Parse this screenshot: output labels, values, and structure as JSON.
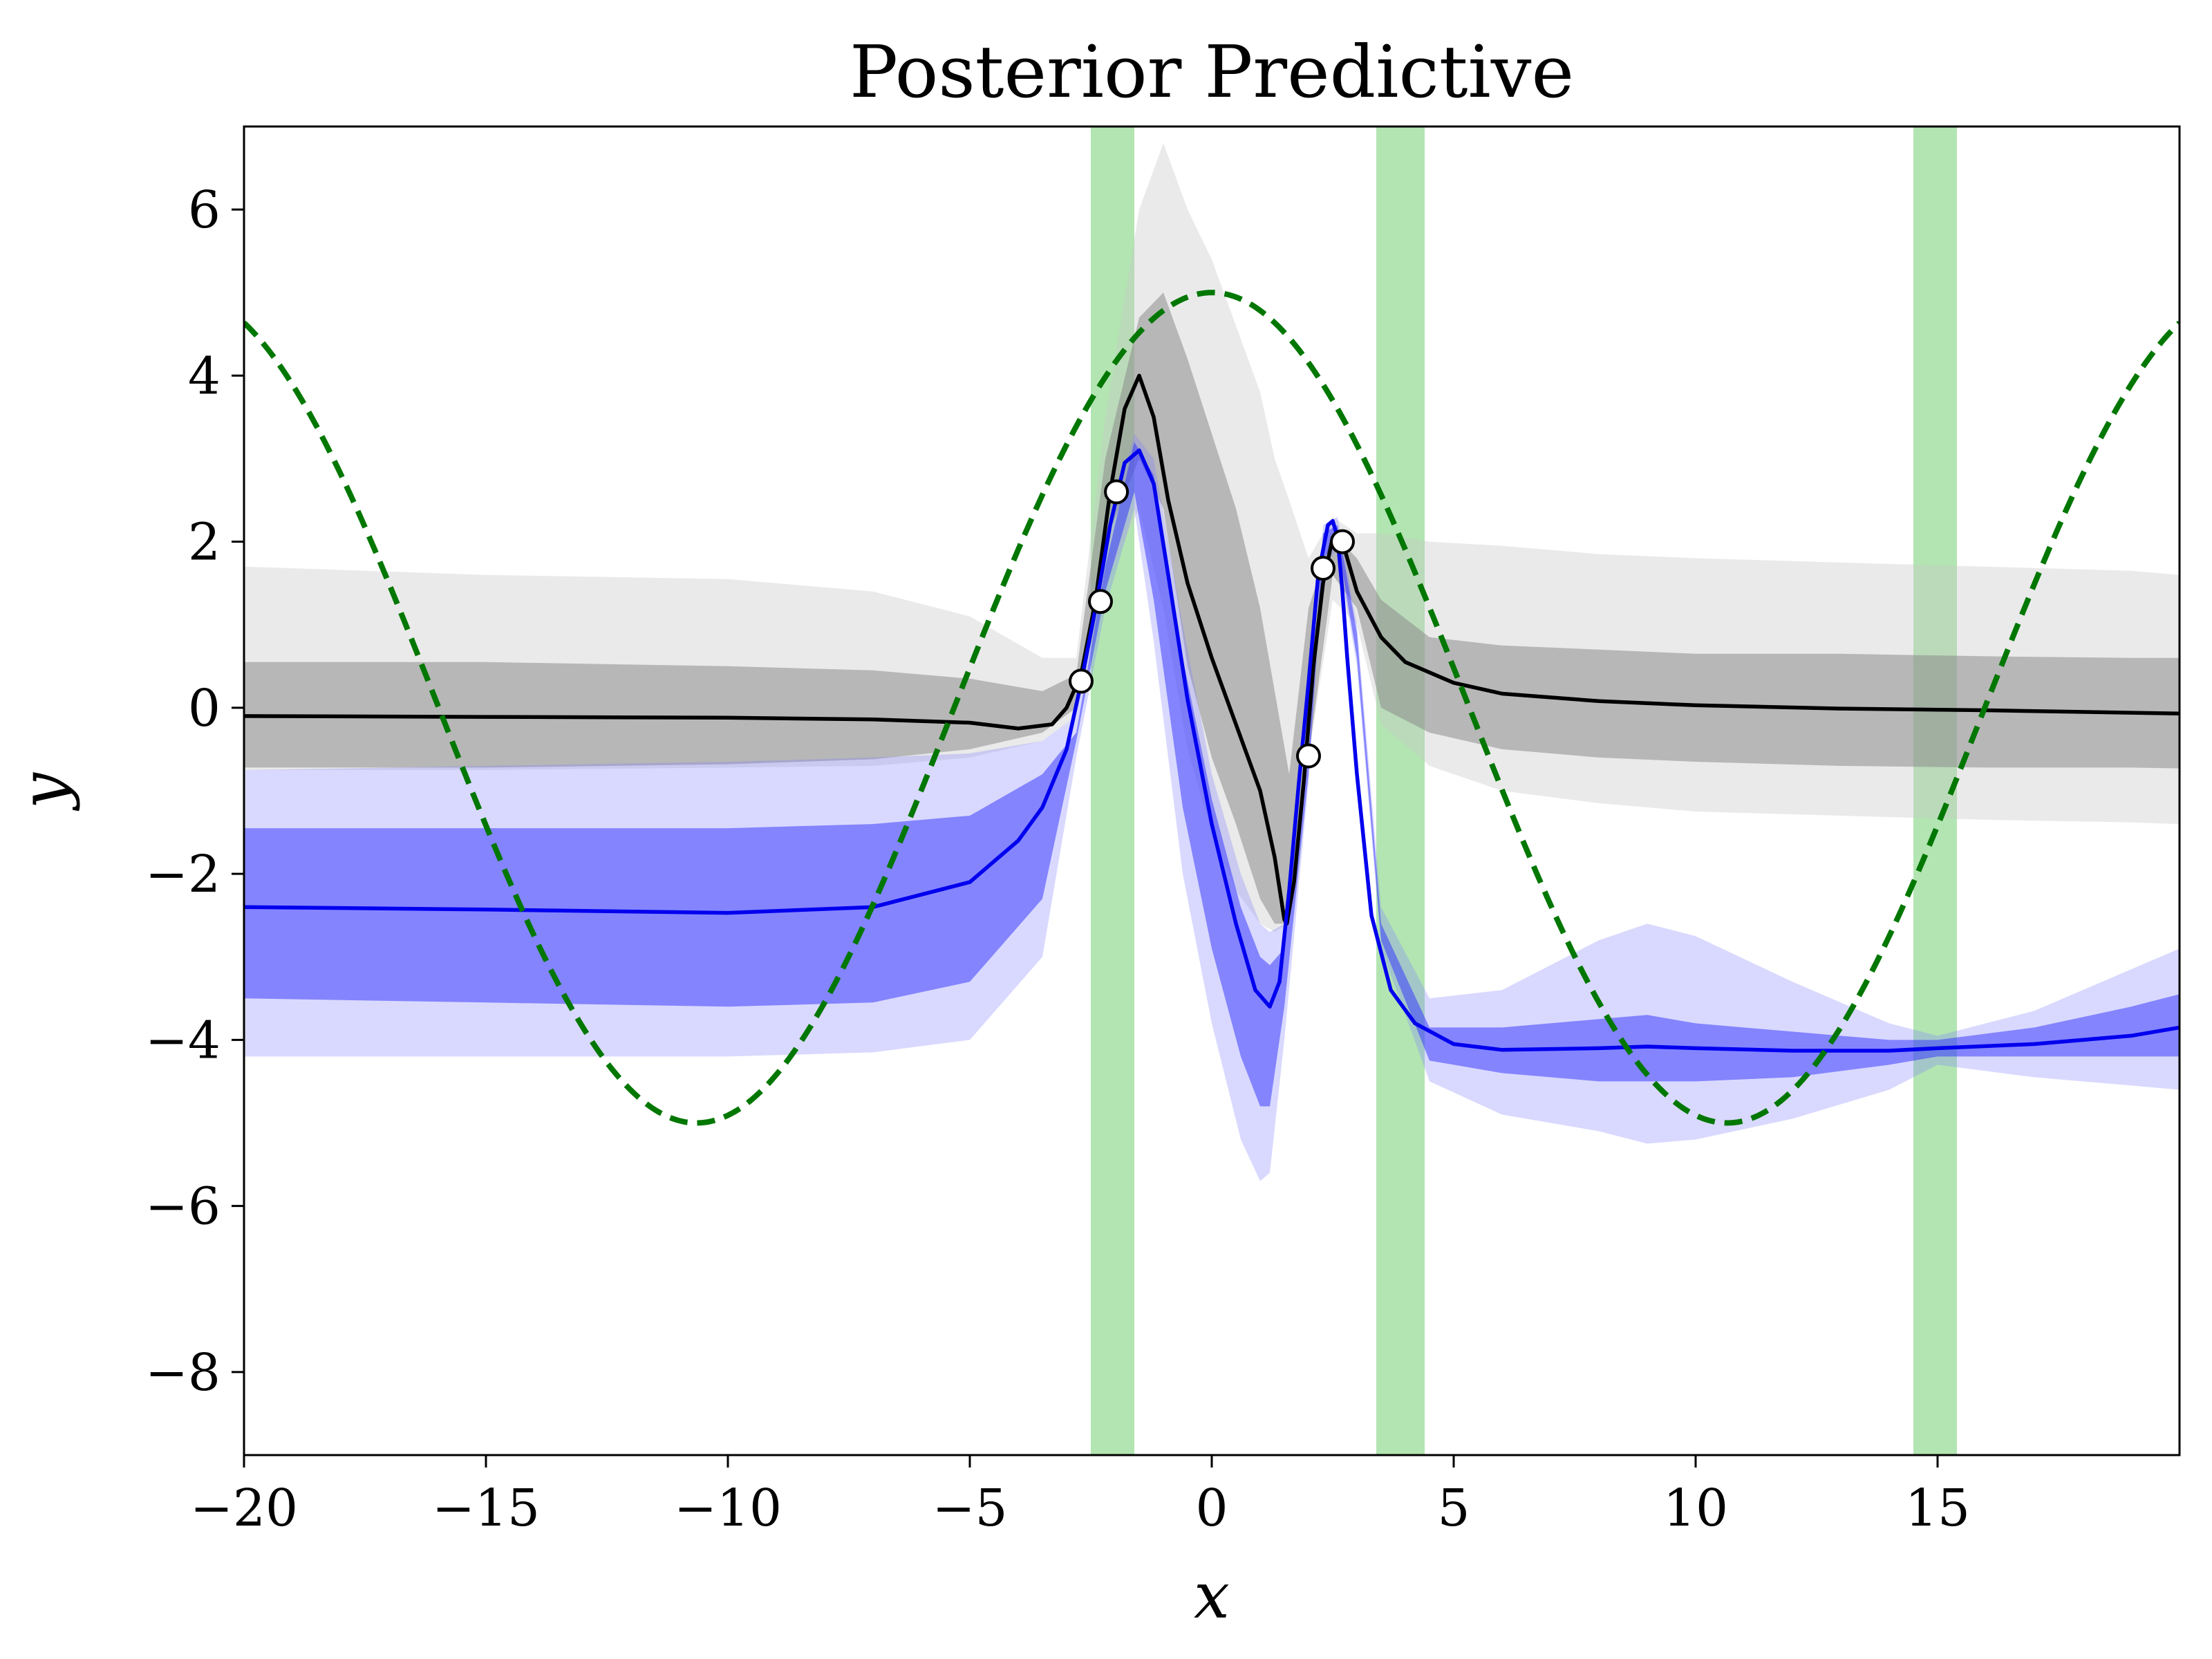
{
  "chart_data": {
    "type": "line",
    "title": "Posterior Predictive",
    "xlabel": "x",
    "ylabel": "y",
    "xlim": [
      -20,
      20
    ],
    "ylim": [
      -9,
      7
    ],
    "xticks": [
      -20,
      -15,
      -10,
      -5,
      0,
      5,
      10,
      15
    ],
    "xtick_labels": [
      "−20",
      "−15",
      "−10",
      "−5",
      "0",
      "5",
      "10",
      "15"
    ],
    "yticks": [
      -8,
      -6,
      -4,
      -2,
      0,
      2,
      4,
      6
    ],
    "ytick_labels": [
      "−8",
      "−6",
      "−4",
      "−2",
      "0",
      "2",
      "4",
      "6"
    ],
    "grid": false,
    "legend": "none",
    "highlight_regions": [
      {
        "x0": -2.5,
        "x1": -1.6
      },
      {
        "x0": 3.4,
        "x1": 4.4
      },
      {
        "x0": 14.5,
        "x1": 15.4
      }
    ],
    "true_function": {
      "style": "dashed",
      "color": "#007700",
      "amplitude": 5,
      "period": 21.3,
      "note_free": true
    },
    "bands": [
      {
        "series": "black",
        "x": [
          -20,
          -15,
          -10,
          -7,
          -5,
          -3.5,
          -2.8,
          -2.2,
          -1.5,
          -1.0,
          -0.5,
          0,
          0.5,
          1.0,
          1.3,
          1.6,
          2.0,
          2.5,
          3.0,
          3.5,
          4.5,
          6,
          8,
          10,
          13,
          16,
          19,
          20
        ],
        "outer_lo": [
          -0.75,
          -0.75,
          -0.72,
          -0.7,
          -0.6,
          -0.4,
          -0.1,
          1.5,
          2.4,
          1.2,
          -0.5,
          -1.5,
          -2.2,
          -2.6,
          -2.7,
          -2.6,
          -0.6,
          1.3,
          1.0,
          -0.2,
          -0.7,
          -1.0,
          -1.15,
          -1.25,
          -1.3,
          -1.35,
          -1.38,
          -1.4
        ],
        "outer_hi": [
          1.7,
          1.6,
          1.55,
          1.4,
          1.1,
          0.6,
          0.6,
          3.5,
          6.0,
          6.8,
          6.0,
          5.4,
          4.6,
          3.8,
          3.0,
          2.5,
          1.8,
          2.3,
          2.1,
          2.1,
          2.0,
          1.95,
          1.85,
          1.8,
          1.75,
          1.7,
          1.65,
          1.6
        ],
        "inner_lo": [
          -0.72,
          -0.72,
          -0.68,
          -0.62,
          -0.5,
          -0.3,
          0.0,
          2.0,
          3.0,
          2.4,
          0.5,
          -0.6,
          -1.4,
          -2.3,
          -2.6,
          -2.6,
          -0.6,
          1.6,
          1.2,
          0.0,
          -0.3,
          -0.5,
          -0.6,
          -0.65,
          -0.7,
          -0.72,
          -0.72,
          -0.73
        ],
        "inner_hi": [
          0.55,
          0.55,
          0.5,
          0.45,
          0.35,
          0.2,
          0.4,
          3.0,
          4.7,
          5.0,
          4.2,
          3.3,
          2.4,
          1.2,
          0.2,
          -0.8,
          1.2,
          2.1,
          1.8,
          1.3,
          0.85,
          0.75,
          0.7,
          0.65,
          0.65,
          0.62,
          0.6,
          0.6
        ]
      },
      {
        "series": "blue",
        "x": [
          -20,
          -15,
          -10,
          -7,
          -5,
          -3.5,
          -2.8,
          -2.2,
          -1.6,
          -1.2,
          -0.6,
          0,
          0.6,
          1.0,
          1.2,
          1.5,
          2.0,
          2.3,
          2.6,
          3.0,
          3.5,
          4.5,
          6,
          8,
          9,
          10,
          12,
          14,
          15,
          17,
          19,
          20
        ],
        "outer_lo": [
          -4.2,
          -4.2,
          -4.2,
          -4.15,
          -4.0,
          -3.0,
          -0.6,
          1.2,
          2.4,
          0.8,
          -2.0,
          -3.8,
          -5.2,
          -5.7,
          -5.6,
          -4.0,
          -0.9,
          1.7,
          1.9,
          0.5,
          -2.9,
          -4.5,
          -4.9,
          -5.1,
          -5.25,
          -5.2,
          -4.95,
          -4.6,
          -4.3,
          -4.45,
          -4.55,
          -4.6
        ],
        "outer_hi": [
          -0.75,
          -0.7,
          -0.65,
          -0.6,
          -0.55,
          -0.4,
          -0.1,
          1.9,
          3.3,
          3.0,
          1.0,
          -0.8,
          -2.0,
          -2.6,
          -2.7,
          -2.6,
          -0.5,
          2.2,
          2.3,
          1.0,
          -2.4,
          -3.5,
          -3.4,
          -2.8,
          -2.6,
          -2.75,
          -3.3,
          -3.8,
          -3.95,
          -3.65,
          -3.15,
          -2.9
        ],
        "inner_lo": [
          -3.5,
          -3.55,
          -3.6,
          -3.55,
          -3.3,
          -2.3,
          -0.4,
          1.4,
          2.6,
          1.3,
          -1.2,
          -2.9,
          -4.2,
          -4.8,
          -4.8,
          -3.6,
          -0.8,
          1.8,
          2.0,
          0.6,
          -2.8,
          -4.25,
          -4.4,
          -4.5,
          -4.5,
          -4.5,
          -4.45,
          -4.3,
          -4.2,
          -4.2,
          -4.2,
          -4.2
        ],
        "inner_hi": [
          -1.45,
          -1.45,
          -1.45,
          -1.4,
          -1.3,
          -0.8,
          -0.3,
          1.7,
          3.2,
          2.8,
          0.6,
          -1.1,
          -2.4,
          -3.0,
          -3.1,
          -2.9,
          -0.6,
          2.1,
          2.2,
          0.9,
          -2.6,
          -3.85,
          -3.85,
          -3.75,
          -3.7,
          -3.8,
          -3.9,
          -4.0,
          -4.0,
          -3.85,
          -3.6,
          -3.45
        ]
      }
    ],
    "series": [
      {
        "color": "#000000",
        "x": [
          -20,
          -15,
          -10,
          -7,
          -5,
          -4,
          -3.3,
          -3.0,
          -2.7,
          -2.4,
          -2.1,
          -1.8,
          -1.5,
          -1.2,
          -0.9,
          -0.5,
          0,
          0.5,
          1.0,
          1.3,
          1.5,
          1.55,
          1.7,
          1.9,
          2.1,
          2.3,
          2.5,
          2.6,
          2.7,
          3.0,
          3.5,
          4.0,
          5,
          6,
          8,
          10,
          13,
          16,
          20
        ],
        "y": [
          -0.1,
          -0.11,
          -0.12,
          -0.14,
          -0.18,
          -0.25,
          -0.2,
          0.0,
          0.4,
          1.3,
          2.6,
          3.6,
          4.0,
          3.5,
          2.5,
          1.5,
          0.6,
          -0.2,
          -1.0,
          -1.8,
          -2.55,
          -2.6,
          -2.1,
          -0.9,
          0.5,
          1.5,
          2.05,
          2.1,
          2.0,
          1.4,
          0.85,
          0.55,
          0.3,
          0.17,
          0.08,
          0.03,
          -0.01,
          -0.03,
          -0.07
        ]
      },
      {
        "color": "#0000ee",
        "x": [
          -20,
          -15,
          -10,
          -7,
          -5,
          -4,
          -3.5,
          -3.0,
          -2.7,
          -2.4,
          -2.1,
          -1.8,
          -1.5,
          -1.2,
          -0.9,
          -0.5,
          0,
          0.5,
          0.9,
          1.2,
          1.4,
          1.6,
          1.8,
          2.0,
          2.2,
          2.4,
          2.5,
          2.6,
          2.7,
          2.8,
          3.0,
          3.3,
          3.7,
          4.2,
          5,
          6,
          8,
          9,
          10,
          12,
          14,
          15,
          17,
          19,
          20
        ],
        "y": [
          -2.4,
          -2.43,
          -2.47,
          -2.4,
          -2.1,
          -1.6,
          -1.2,
          -0.5,
          0.3,
          1.2,
          2.2,
          2.95,
          3.1,
          2.7,
          1.6,
          0.1,
          -1.4,
          -2.6,
          -3.4,
          -3.6,
          -3.3,
          -2.2,
          -0.9,
          0.3,
          1.6,
          2.2,
          2.25,
          2.05,
          1.4,
          0.6,
          -0.8,
          -2.5,
          -3.4,
          -3.8,
          -4.05,
          -4.12,
          -4.1,
          -4.08,
          -4.1,
          -4.13,
          -4.13,
          -4.1,
          -4.05,
          -3.95,
          -3.85
        ]
      }
    ],
    "observations": {
      "x": [
        -2.7,
        -2.3,
        -1.97,
        2.0,
        2.3,
        2.7
      ],
      "y": [
        0.32,
        1.28,
        2.6,
        -0.58,
        1.68,
        2.0
      ]
    }
  }
}
